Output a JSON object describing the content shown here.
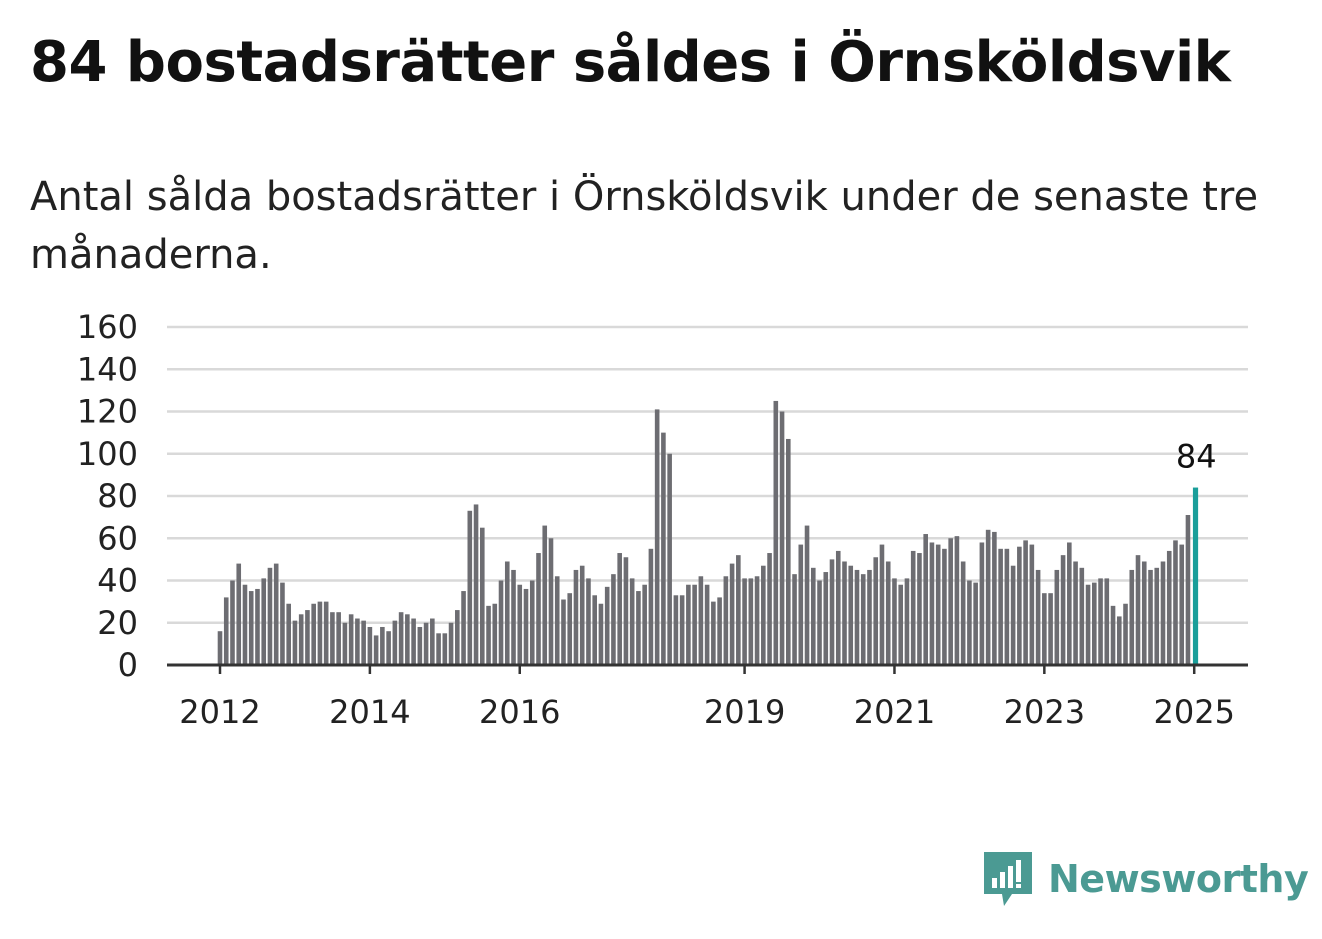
{
  "title": "84 bostadsrätter såldes i Örnsköldsvik",
  "subtitle": "Antal sålda bostadsrätter i Örnsköldsvik under de senaste tre månaderna.",
  "brand": {
    "name": "Newsworthy",
    "icon": "newsworthy-logo-icon"
  },
  "colors": {
    "bar": "#6d6d72",
    "highlight": "#1a9e9a",
    "grid": "#d9d9d9",
    "axis": "#333333",
    "brand": "#4b9a93"
  },
  "chart_data": {
    "type": "bar",
    "x_start": "2012-01",
    "x_end": "2025-01",
    "frequency": "monthly",
    "ylim": [
      0,
      160
    ],
    "yticks": [
      "0",
      "20",
      "40",
      "60",
      "80",
      "100",
      "120",
      "140",
      "160"
    ],
    "xticks": [
      "2012",
      "2014",
      "2016",
      "2019",
      "2021",
      "2023",
      "2025"
    ],
    "grid": true,
    "values": [
      16,
      32,
      40,
      48,
      38,
      35,
      36,
      41,
      46,
      48,
      39,
      29,
      21,
      24,
      26,
      29,
      30,
      30,
      25,
      25,
      20,
      24,
      22,
      21,
      18,
      14,
      18,
      16,
      21,
      25,
      24,
      22,
      18,
      20,
      22,
      15,
      15,
      20,
      26,
      35,
      73,
      76,
      65,
      28,
      29,
      40,
      49,
      45,
      38,
      36,
      40,
      53,
      66,
      60,
      42,
      31,
      34,
      45,
      47,
      41,
      33,
      29,
      37,
      43,
      53,
      51,
      41,
      35,
      38,
      55,
      121,
      110,
      100,
      33,
      33,
      38,
      38,
      42,
      38,
      30,
      32,
      42,
      48,
      52,
      41,
      41,
      42,
      47,
      53,
      125,
      120,
      107,
      43,
      57,
      66,
      46,
      40,
      44,
      50,
      54,
      49,
      47,
      45,
      43,
      45,
      51,
      57,
      49,
      41,
      38,
      41,
      54,
      53,
      62,
      58,
      57,
      55,
      60,
      61,
      49,
      40,
      39,
      58,
      64,
      63,
      55,
      55,
      47,
      56,
      59,
      57,
      45,
      34,
      34,
      45,
      52,
      58,
      49,
      46,
      38,
      39,
      41,
      41,
      28,
      23,
      29,
      45,
      52,
      49,
      45,
      46,
      49,
      54,
      59,
      57,
      71,
      84
    ],
    "highlight_label": "84"
  }
}
